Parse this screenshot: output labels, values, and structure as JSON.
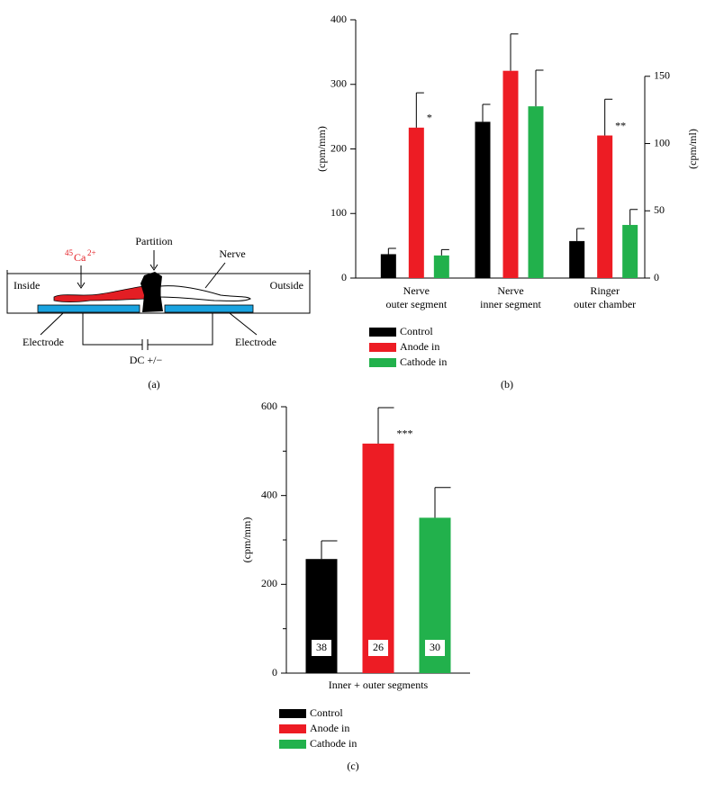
{
  "diagram": {
    "labels": {
      "ca_mass": "45",
      "ca_symbol": "Ca",
      "ca_charge": "2+",
      "partition": "Partition",
      "nerve": "Nerve",
      "inside": "Inside",
      "outside": "Outside",
      "electrode_left": "Electrode",
      "electrode_right": "Electrode",
      "power": "DC +/−"
    },
    "caption": "(a)"
  },
  "chart_data": [
    {
      "type": "bar",
      "caption": "(b)",
      "ylabel": "(cpm/mm)",
      "y2label": "(cpm/ml)",
      "categories": [
        "Nerve\nouter segment",
        "Nerve\ninner segment",
        "Ringer\nouter chamber"
      ],
      "category_axis": [
        "y",
        "y",
        "y2"
      ],
      "ylim": [
        0,
        400
      ],
      "yticks": [
        0,
        100,
        200,
        300,
        400
      ],
      "y2lim": [
        0,
        192
      ],
      "y2ticks": [
        0,
        50,
        100,
        150
      ],
      "series": [
        {
          "name": "Control",
          "color": "#000000",
          "values": [
            37,
            242,
            27.5
          ],
          "errors": [
            9,
            27,
            9.3
          ]
        },
        {
          "name": "Anode in",
          "color": "#ed1c24",
          "values": [
            233,
            321,
            106
          ],
          "errors": [
            54,
            57,
            27
          ],
          "significance": [
            "*",
            null,
            "**"
          ]
        },
        {
          "name": "Cathode in",
          "color": "#22b14c",
          "values": [
            35,
            266,
            39.5
          ],
          "errors": [
            9,
            56,
            11.5
          ]
        }
      ]
    },
    {
      "type": "bar",
      "caption": "(c)",
      "ylabel": "(cpm/mm)",
      "categories": [
        "Inner + outer segments"
      ],
      "ylim": [
        0,
        600
      ],
      "yticks": [
        0,
        200,
        400,
        600
      ],
      "minor_yticks": [
        100,
        300,
        500
      ],
      "series": [
        {
          "name": "Control",
          "color": "#000000",
          "values": [
            257
          ],
          "errors": [
            41
          ],
          "n": [
            38
          ]
        },
        {
          "name": "Anode in",
          "color": "#ed1c24",
          "values": [
            517
          ],
          "errors": [
            81
          ],
          "n": [
            26
          ],
          "significance": [
            "***"
          ]
        },
        {
          "name": "Cathode in",
          "color": "#22b14c",
          "values": [
            350
          ],
          "errors": [
            68
          ],
          "n": [
            30
          ]
        }
      ]
    }
  ]
}
